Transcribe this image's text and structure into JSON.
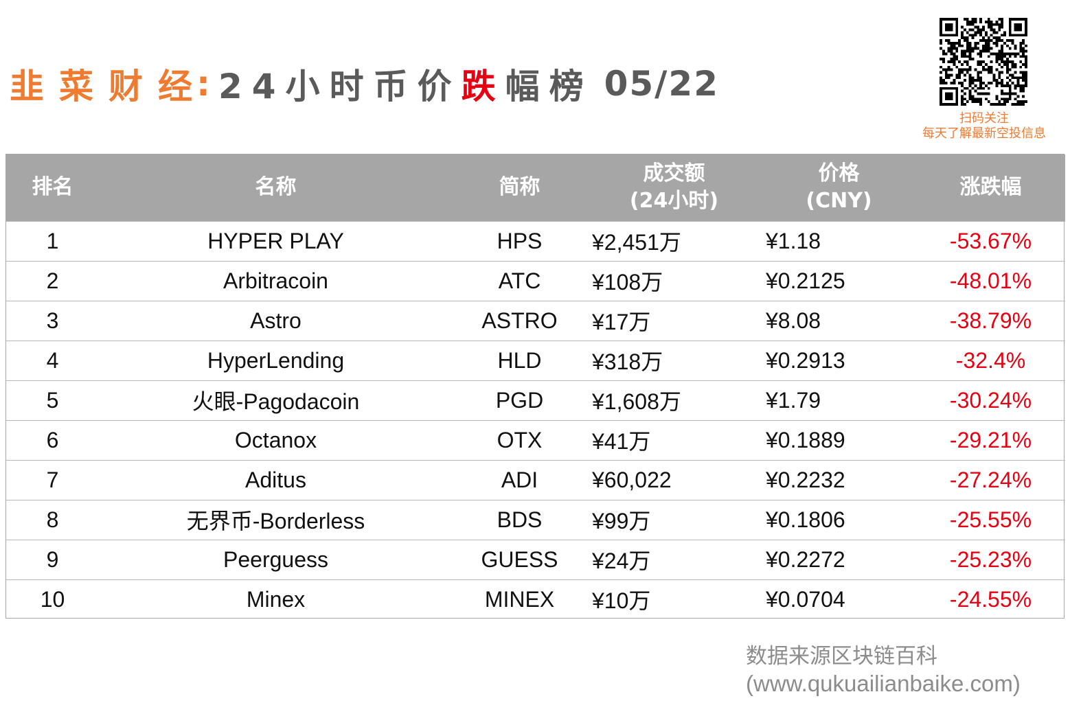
{
  "title": {
    "brand": "韭菜财经",
    "colon": ":",
    "lead": "24小时币价",
    "fall": "跌",
    "tail": "幅榜",
    "date": "05/22"
  },
  "qr": {
    "caption_line1": "扫码关注",
    "caption_line2": "每天了解最新空投信息"
  },
  "table": {
    "headers": {
      "rank": "排名",
      "name": "名称",
      "symbol": "简称",
      "volume_line1": "成交额",
      "volume_line2": "(24小时)",
      "price_line1": "价格",
      "price_line2": "(CNY)",
      "change": "涨跌幅"
    },
    "rows": [
      {
        "rank": "1",
        "name": "HYPER PLAY",
        "symbol": "HPS",
        "volume": "¥2,451万",
        "price": "¥1.18",
        "change": "-53.67%"
      },
      {
        "rank": "2",
        "name": "Arbitracoin",
        "symbol": "ATC",
        "volume": "¥108万",
        "price": "¥0.2125",
        "change": "-48.01%"
      },
      {
        "rank": "3",
        "name": "Astro",
        "symbol": "ASTRO",
        "volume": "¥17万",
        "price": "¥8.08",
        "change": "-38.79%"
      },
      {
        "rank": "4",
        "name": "HyperLending",
        "symbol": "HLD",
        "volume": "¥318万",
        "price": "¥0.2913",
        "change": "-32.4%"
      },
      {
        "rank": "5",
        "name": "火眼-Pagodacoin",
        "symbol": "PGD",
        "volume": "¥1,608万",
        "price": "¥1.79",
        "change": "-30.24%"
      },
      {
        "rank": "6",
        "name": "Octanox",
        "symbol": "OTX",
        "volume": "¥41万",
        "price": "¥0.1889",
        "change": "-29.21%"
      },
      {
        "rank": "7",
        "name": "Aditus",
        "symbol": "ADI",
        "volume": "¥60,022",
        "price": "¥0.2232",
        "change": "-27.24%"
      },
      {
        "rank": "8",
        "name": "无界币-Borderless",
        "symbol": "BDS",
        "volume": "¥99万",
        "price": "¥0.1806",
        "change": "-25.55%"
      },
      {
        "rank": "9",
        "name": "Peerguess",
        "symbol": "GUESS",
        "volume": "¥24万",
        "price": "¥0.2272",
        "change": "-25.23%"
      },
      {
        "rank": "10",
        "name": "Minex",
        "symbol": "MINEX",
        "volume": "¥10万",
        "price": "¥0.0704",
        "change": "-24.55%"
      }
    ]
  },
  "source": {
    "line1": "数据来源区块链百科",
    "line2": "(www.qukuailianbaike.com)"
  },
  "colors": {
    "brand_orange": "#ee7b30",
    "fall_red": "#e60012",
    "header_gray": "#a6a6a6",
    "source_gray": "#8c8c8c"
  }
}
